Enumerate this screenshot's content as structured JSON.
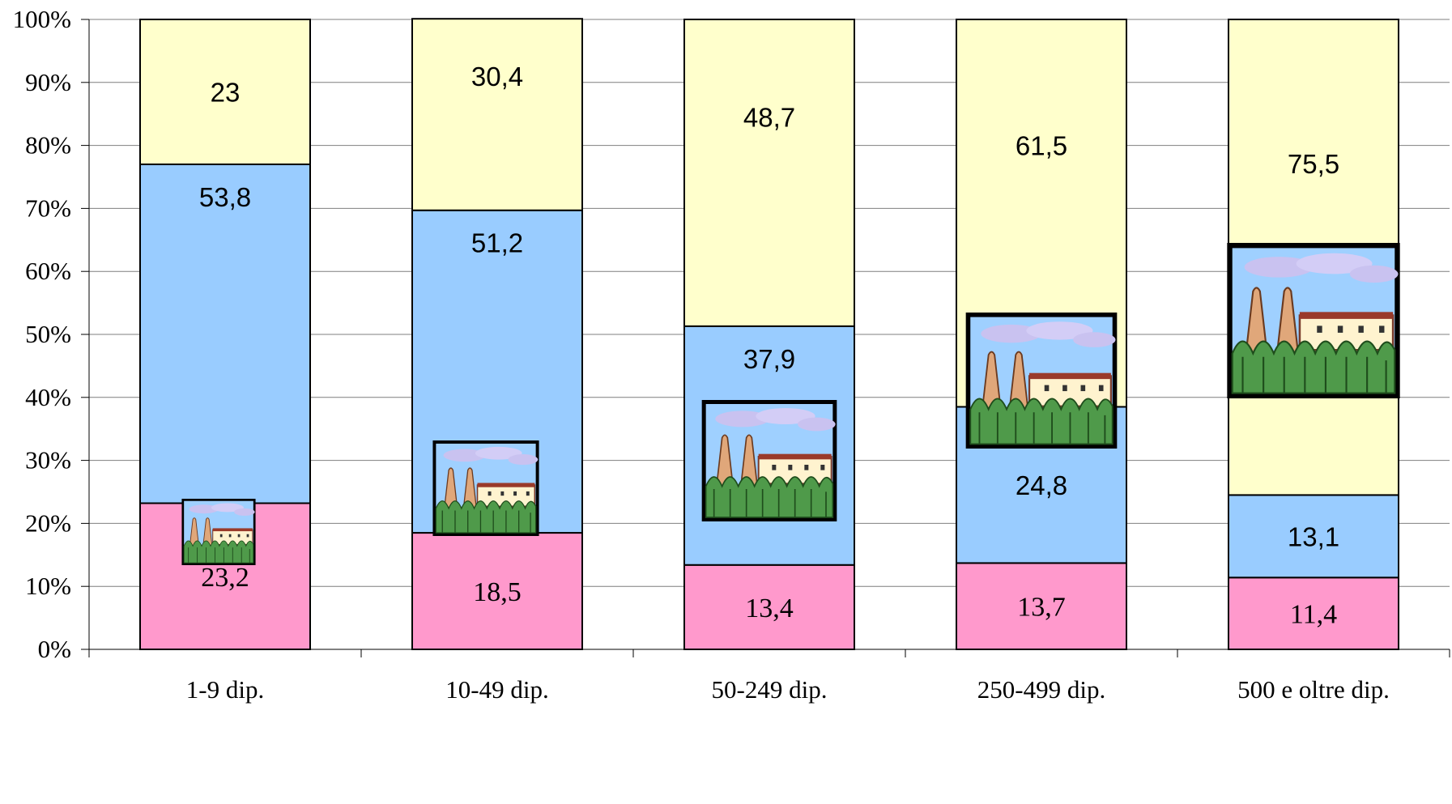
{
  "chart_data": {
    "type": "bar",
    "stacked": true,
    "percent": true,
    "categories": [
      "1-9 dip.",
      "10-49 dip.",
      "50-249 dip.",
      "250-499 dip.",
      "500 e oltre dip."
    ],
    "series": [
      {
        "values": [
          23.2,
          18.5,
          13.4,
          13.7,
          11.4
        ],
        "color": "#ff99cc"
      },
      {
        "values": [
          53.8,
          51.2,
          37.9,
          24.8,
          13.1
        ],
        "color": "#99ccff"
      },
      {
        "values": [
          23,
          30.4,
          48.7,
          61.5,
          75.5
        ],
        "color": "#ffffcc"
      }
    ],
    "value_labels": [
      [
        "23,2",
        "18,5",
        "13,4",
        "13,7",
        "11,4"
      ],
      [
        "53,8",
        "51,2",
        "37,9",
        "24,8",
        "13,1"
      ],
      [
        "23",
        "30,4",
        "48,7",
        "61,5",
        "75,5"
      ]
    ],
    "y_ticks": [
      "0%",
      "10%",
      "20%",
      "30%",
      "40%",
      "50%",
      "60%",
      "70%",
      "80%",
      "90%",
      "100%"
    ],
    "ylim": [
      0,
      100
    ],
    "grid": true,
    "legend": "none",
    "icons": [
      "factory-icon",
      "factory-icon",
      "factory-icon",
      "factory-icon",
      "factory-icon"
    ]
  }
}
